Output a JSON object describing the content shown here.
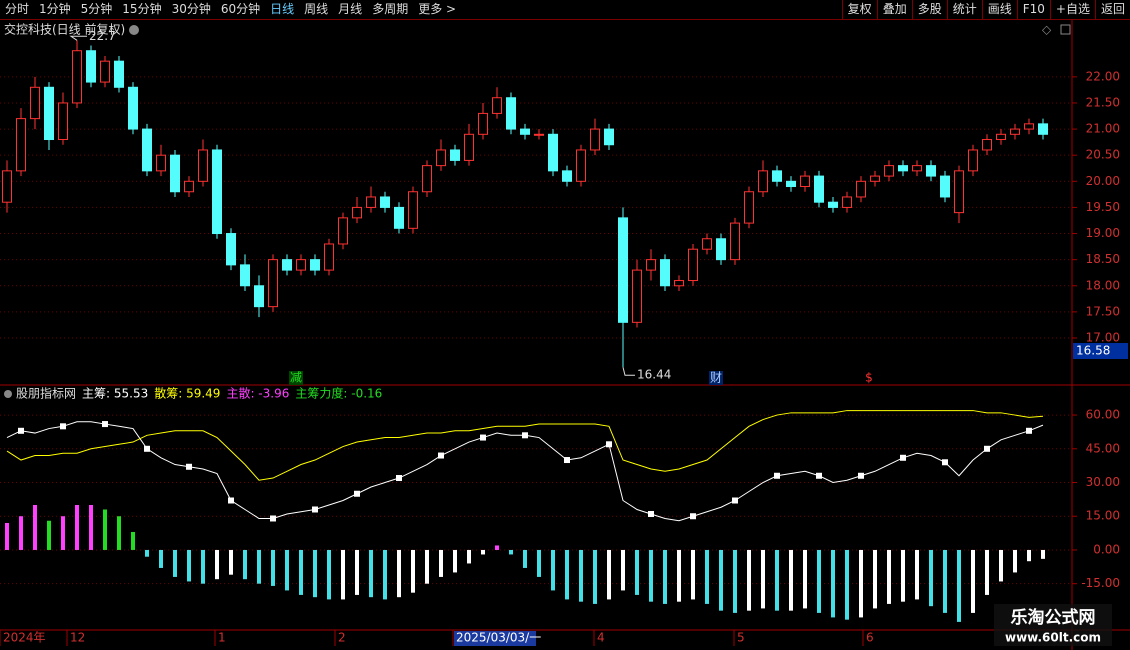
{
  "toolbar": {
    "left": [
      "分时",
      "1分钟",
      "5分钟",
      "15分钟",
      "30分钟",
      "60分钟",
      "日线",
      "周线",
      "月线",
      "多周期",
      "更多 >"
    ],
    "right": [
      "复权",
      "叠加",
      "多股",
      "统计",
      "画线",
      "F10",
      "+自选",
      "返回"
    ],
    "active": "日线"
  },
  "chart_data": [
    {
      "type": "candlestick",
      "title": "交控科技(日线 前复权)",
      "open": [
        19.6,
        20.2,
        21.2,
        21.8,
        20.8,
        21.5,
        22.5,
        21.9,
        22.3,
        21.8,
        21.0,
        20.2,
        20.5,
        19.8,
        20.0,
        20.6,
        19.0,
        18.4,
        18.0,
        17.6,
        18.5,
        18.3,
        18.5,
        18.3,
        18.8,
        19.3,
        19.5,
        19.7,
        19.5,
        19.1,
        19.8,
        20.3,
        20.6,
        20.4,
        20.9,
        21.3,
        21.6,
        21.0,
        20.9,
        20.9,
        20.2,
        20.0,
        20.6,
        21.0,
        19.3,
        17.3,
        18.3,
        18.5,
        18.0,
        18.1,
        18.7,
        18.9,
        18.5,
        19.2,
        19.8,
        20.2,
        20.0,
        19.9,
        20.1,
        19.6,
        19.5,
        19.7,
        20.0,
        20.1,
        20.3,
        20.2,
        20.3,
        20.1,
        19.4,
        20.2,
        20.6,
        20.8,
        20.9,
        21.0,
        21.1
      ],
      "high": [
        20.4,
        21.4,
        22.0,
        21.9,
        21.7,
        22.7,
        22.6,
        22.4,
        22.4,
        21.9,
        21.1,
        20.7,
        20.6,
        20.1,
        20.8,
        20.7,
        19.1,
        18.6,
        18.2,
        18.6,
        18.6,
        18.6,
        18.6,
        18.9,
        19.4,
        19.7,
        19.9,
        19.8,
        19.6,
        19.9,
        20.4,
        20.8,
        20.7,
        21.1,
        21.5,
        21.8,
        21.7,
        21.1,
        21.0,
        21.0,
        20.3,
        20.7,
        21.2,
        21.1,
        19.5,
        18.5,
        18.7,
        18.6,
        18.2,
        18.8,
        19.0,
        19.0,
        19.3,
        19.9,
        20.4,
        20.3,
        20.1,
        20.2,
        20.2,
        19.7,
        19.8,
        20.1,
        20.2,
        20.4,
        20.4,
        20.4,
        20.4,
        20.2,
        20.3,
        20.7,
        20.9,
        21.0,
        21.1,
        21.2,
        21.2
      ],
      "low": [
        19.4,
        20.1,
        21.0,
        20.6,
        20.7,
        21.4,
        21.8,
        21.8,
        21.7,
        20.9,
        20.1,
        20.1,
        19.7,
        19.7,
        19.9,
        18.9,
        18.3,
        17.9,
        17.4,
        17.5,
        18.2,
        18.2,
        18.2,
        18.2,
        18.7,
        19.2,
        19.4,
        19.4,
        19.0,
        19.0,
        19.7,
        20.2,
        20.3,
        20.3,
        20.8,
        21.2,
        20.9,
        20.8,
        20.8,
        20.1,
        19.9,
        19.9,
        20.5,
        20.6,
        16.44,
        17.2,
        18.1,
        17.9,
        17.9,
        18.0,
        18.6,
        18.4,
        18.4,
        19.1,
        19.7,
        19.9,
        19.8,
        19.8,
        19.5,
        19.4,
        19.4,
        19.6,
        19.9,
        20.0,
        20.1,
        20.1,
        20.0,
        19.6,
        19.2,
        20.1,
        20.5,
        20.7,
        20.8,
        20.9,
        20.8
      ],
      "close": [
        20.2,
        21.2,
        21.8,
        20.8,
        21.5,
        22.5,
        21.9,
        22.3,
        21.8,
        21.0,
        20.2,
        20.5,
        19.8,
        20.0,
        20.6,
        19.0,
        18.4,
        18.0,
        17.6,
        18.5,
        18.3,
        18.5,
        18.3,
        18.8,
        19.3,
        19.5,
        19.7,
        19.5,
        19.1,
        19.8,
        20.3,
        20.6,
        20.4,
        20.9,
        21.3,
        21.6,
        21.0,
        20.9,
        20.9,
        20.2,
        20.0,
        20.6,
        21.0,
        20.7,
        17.3,
        18.3,
        18.5,
        18.0,
        18.1,
        18.7,
        18.9,
        18.5,
        19.2,
        19.8,
        20.2,
        20.0,
        19.9,
        20.1,
        19.6,
        19.5,
        19.7,
        20.0,
        20.1,
        20.3,
        20.2,
        20.3,
        20.1,
        19.7,
        20.2,
        20.6,
        20.8,
        20.9,
        21.0,
        21.1,
        20.9
      ],
      "ylim": [
        16.1,
        23.05
      ],
      "yticks": [
        {
          "value": 17,
          "label": "17.00"
        },
        {
          "value": 17.5,
          "label": "17.50"
        },
        {
          "value": 18,
          "label": "18.00"
        },
        {
          "value": 18.5,
          "label": "18.50"
        },
        {
          "value": 19,
          "label": "19.00"
        },
        {
          "value": 19.5,
          "label": "19.50"
        },
        {
          "value": 20,
          "label": "20.00"
        },
        {
          "value": 20.5,
          "label": "20.50"
        },
        {
          "value": 21,
          "label": "21.00"
        },
        {
          "value": 21.5,
          "label": "21.50"
        },
        {
          "value": 22,
          "label": "22.00"
        }
      ],
      "grid": true,
      "up_color": "#ff3232",
      "down_color": "#54fcfc",
      "high_label": "22.7",
      "low_label": "16.44",
      "cursor_price": "16.58",
      "events": [
        "减",
        "财",
        "$"
      ]
    },
    {
      "type": "indicator",
      "title": "股朋指标网",
      "series": [
        {
          "name": "主筹: 55.53",
          "color": "#ffffff",
          "kind": "line",
          "values": [
            50,
            53,
            52,
            54,
            55,
            57,
            57,
            56,
            55,
            54,
            45,
            41,
            38,
            37,
            36,
            34,
            22,
            18,
            14,
            14,
            16,
            17,
            18,
            20,
            22,
            25,
            28,
            30,
            32,
            35,
            38,
            42,
            45,
            48,
            50,
            52,
            51,
            51,
            50,
            45,
            40,
            41,
            44,
            47,
            22,
            18,
            16,
            14,
            13,
            15,
            17,
            19,
            22,
            26,
            30,
            33,
            34,
            35,
            33,
            30,
            31,
            33,
            35,
            38,
            41,
            43,
            42,
            39,
            33,
            40,
            45,
            49,
            51,
            53,
            55.53
          ]
        },
        {
          "name": "散筹: 59.49",
          "color": "#ffff00",
          "kind": "line",
          "values": [
            44,
            40,
            42,
            42,
            43,
            43,
            45,
            46,
            47,
            48,
            51,
            52,
            53,
            53,
            53,
            50,
            44,
            38,
            31,
            32,
            35,
            38,
            40,
            43,
            46,
            48,
            49,
            50,
            50,
            51,
            52,
            52,
            53,
            53,
            54,
            55,
            55,
            55,
            56,
            56,
            56,
            56,
            56,
            55,
            40,
            38,
            36,
            35,
            36,
            38,
            40,
            45,
            50,
            55,
            58,
            60,
            61,
            61,
            61,
            61,
            62,
            62,
            62,
            62,
            62,
            62,
            62,
            62,
            62,
            62,
            61,
            61,
            60,
            59,
            59.49
          ]
        },
        {
          "name": "主散: -3.96",
          "color": "#ff40ff",
          "kind": "bar",
          "values": [
            12,
            15,
            20,
            13,
            15,
            20,
            20,
            18,
            15,
            8,
            -3,
            -8,
            -12,
            -14,
            -15,
            -13,
            -11,
            -13,
            -15,
            -16,
            -18,
            -20,
            -21,
            -22,
            -22,
            -20,
            -21,
            -22,
            -21,
            -19,
            -15,
            -12,
            -10,
            -6,
            -2,
            2,
            -2,
            -8,
            -12,
            -18,
            -22,
            -23,
            -24,
            -22,
            -18,
            -20,
            -23,
            -24,
            -23,
            -22,
            -24,
            -27,
            -28,
            -27,
            -26,
            -27,
            -27,
            -26,
            -28,
            -30,
            -31,
            -30,
            -26,
            -24,
            -23,
            -22,
            -25,
            -28,
            -32,
            -28,
            -20,
            -14,
            -10,
            -5,
            -3.96
          ]
        }
      ],
      "extra_legend": {
        "name": "主筹力度: -0.16",
        "color": "#22dd22"
      },
      "bar_colors": {
        "pos_up": "#ff40ff",
        "pos_down": "#22dd22",
        "neg_up": "#ffffff",
        "neg_down": "#44e0e8"
      },
      "ylim": [
        -35.6,
        66.7
      ],
      "yticks": [
        {
          "value": 60,
          "label": "60.00"
        },
        {
          "value": 45,
          "label": "45.00"
        },
        {
          "value": 30,
          "label": "30.00"
        },
        {
          "value": 15,
          "label": "15.00"
        },
        {
          "value": 0,
          "label": "0.00"
        },
        {
          "value": -15,
          "label": "-15.00"
        }
      ]
    }
  ],
  "date_axis": [
    "2024年",
    "12",
    "1",
    "2",
    "2025/03/03/一",
    "4",
    "5",
    "6"
  ],
  "watermark": {
    "title": "乐淘公式网",
    "url": "www.60lt.com"
  }
}
